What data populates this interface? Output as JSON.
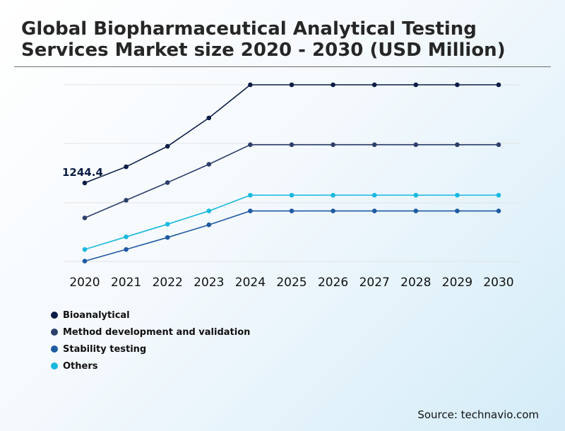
{
  "title": "Global Biopharmaceutical Analytical Testing Services Market size 2020 - 2030 (USD Million)",
  "source": "Source: technavio.com",
  "colors": {
    "bioanalytical": "#0b1d45",
    "method": "#2d3f6b",
    "stability": "#1f5aa2",
    "others": "#17b9de",
    "grid": "#e3e3e3",
    "label": "#0b1d45"
  },
  "chart_data": {
    "type": "line",
    "title": "Global Biopharmaceutical Analytical Testing Services Market size 2020 - 2030 (USD Million)",
    "xlabel": "",
    "ylabel": "",
    "categories": [
      "2020",
      "2021",
      "2022",
      "2023",
      "2024",
      "2025",
      "2026",
      "2027",
      "2028",
      "2029",
      "2030"
    ],
    "ylim": [
      0,
      3600
    ],
    "grid": true,
    "annotations": [
      {
        "series": "Bioanalytical",
        "x": "2020",
        "text": "1244.4"
      }
    ],
    "series": [
      {
        "name": "Bioanalytical",
        "color": "#0b1d45",
        "values": [
          1244.4,
          1500,
          1825,
          2275,
          2800,
          2800,
          2800,
          2800,
          2800,
          2800,
          2800
        ]
      },
      {
        "name": "Method development and validation",
        "color": "#2d3f6b",
        "values": [
          690,
          970,
          1250,
          1540,
          1850,
          1850,
          1850,
          1850,
          1850,
          1850,
          1850
        ]
      },
      {
        "name": "Stability testing",
        "color": "#1f5aa2",
        "values": [
          5,
          190,
          380,
          580,
          800,
          800,
          800,
          800,
          800,
          800,
          800
        ]
      },
      {
        "name": "Others",
        "color": "#17b9de",
        "values": [
          190,
          390,
          590,
          800,
          1050,
          1050,
          1050,
          1050,
          1050,
          1050,
          1050
        ]
      }
    ]
  }
}
